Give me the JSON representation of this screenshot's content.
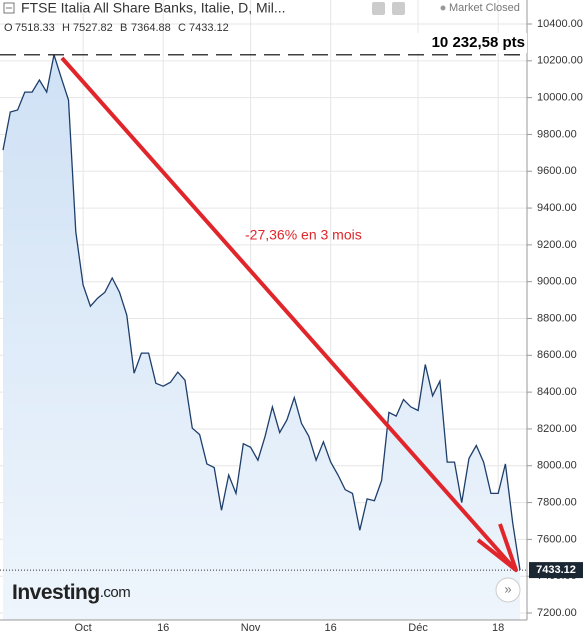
{
  "header": {
    "title": "FTSE Italia All Share Banks, Italie, D, Mil...",
    "status": "Market Closed",
    "ohlc": [
      {
        "key": "O",
        "value": "7518.33"
      },
      {
        "key": "H",
        "value": "7527.82"
      },
      {
        "key": "B",
        "value": "7364.88"
      },
      {
        "key": "C",
        "value": "7433.12"
      }
    ]
  },
  "logo": {
    "brand": "Investing",
    "suffix": ".com"
  },
  "chart_data": {
    "type": "area",
    "categories": [
      null,
      null,
      null,
      null,
      null,
      null,
      null,
      null,
      null,
      null,
      null,
      "Oct",
      null,
      null,
      null,
      null,
      null,
      null,
      null,
      null,
      null,
      null,
      "16",
      null,
      null,
      null,
      null,
      null,
      null,
      null,
      null,
      null,
      null,
      null,
      "Nov",
      null,
      null,
      null,
      null,
      null,
      null,
      null,
      null,
      null,
      null,
      "16",
      null,
      null,
      null,
      null,
      null,
      null,
      null,
      null,
      null,
      null,
      null,
      "Déc",
      null,
      null,
      null,
      null,
      null,
      null,
      null,
      null,
      null,
      null,
      "18",
      null,
      null,
      null
    ],
    "values": [
      9715,
      9922,
      9933,
      10030,
      10030,
      10096,
      10030,
      10232.58,
      10107,
      9987,
      9270,
      8982,
      8867,
      8911,
      8943,
      9020,
      8943,
      8818,
      8503,
      8612,
      8612,
      8448,
      8432,
      8454,
      8509,
      8465,
      8204,
      8170,
      8010,
      7990,
      7758,
      7950,
      7850,
      8120,
      8100,
      8030,
      8160,
      8320,
      8180,
      8250,
      8370,
      8230,
      8160,
      8030,
      8130,
      8020,
      7950,
      7870,
      7850,
      7650,
      7820,
      7810,
      7920,
      8290,
      8270,
      8360,
      8320,
      8300,
      8550,
      8380,
      8460,
      8020,
      8020,
      7800,
      8040,
      8110,
      8020,
      7850,
      7850,
      8010,
      7690,
      7433.12
    ],
    "color": "#1d3e6b",
    "fill": "#d6e6f7",
    "ylim": [
      7200,
      10400
    ],
    "yticks": [
      {
        "value": 7200,
        "label": "7200.00"
      },
      {
        "value": 7400,
        "label": "7400.00"
      },
      {
        "value": 7600,
        "label": "7600.00"
      },
      {
        "value": 7800,
        "label": "7800.00"
      },
      {
        "value": 8000,
        "label": "8000.00"
      },
      {
        "value": 8200,
        "label": "8200.00"
      },
      {
        "value": 8400,
        "label": "8400.00"
      },
      {
        "value": 8600,
        "label": "8600.00"
      },
      {
        "value": 8800,
        "label": "8800.00"
      },
      {
        "value": 9000,
        "label": "9000.00"
      },
      {
        "value": 9200,
        "label": "9200.00"
      },
      {
        "value": 9400,
        "label": "9400.00"
      },
      {
        "value": 9600,
        "label": "9600.00"
      },
      {
        "value": 9800,
        "label": "9800.00"
      },
      {
        "value": 10000,
        "label": "10000.00"
      },
      {
        "value": 10200,
        "label": "10200.00"
      },
      {
        "value": 10400,
        "label": "10400.00"
      }
    ],
    "grid": true,
    "annotations": {
      "change": "-27,36% en 3 mois",
      "peak": "10 232,58 pts"
    }
  }
}
